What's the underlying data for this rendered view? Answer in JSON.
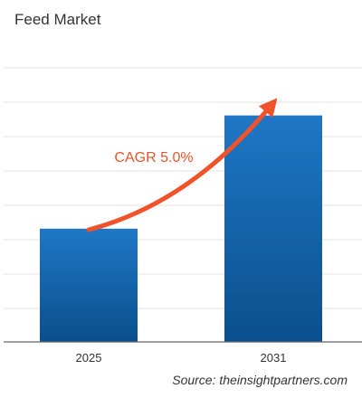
{
  "title": "Feed Market",
  "source": "Source: theinsightpartners.com",
  "chart_data": {
    "type": "bar",
    "categories": [
      "2025",
      "2031"
    ],
    "values": [
      50,
      100
    ],
    "ylim": [
      0,
      135
    ],
    "grid": true,
    "annotation": "CAGR 5.0%",
    "colors": {
      "bar_top": "#1f77c5",
      "bar_bottom": "#0a4f8c",
      "arrow": "#f0522a",
      "annotation_text": "#e8532b",
      "grid": "#e3e3e3",
      "axis": "#666666"
    }
  }
}
